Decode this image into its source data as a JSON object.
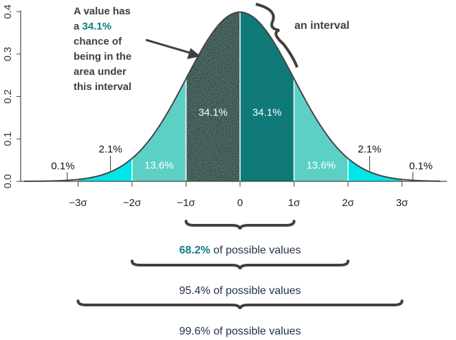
{
  "chart_data": {
    "type": "area",
    "distribution": "standard normal",
    "x_tick_labels": [
      "−3σ",
      "−2σ",
      "−1σ",
      "0",
      "1σ",
      "2σ",
      "3σ"
    ],
    "x_tick_values": [
      -3,
      -2,
      -1,
      0,
      1,
      2,
      3
    ],
    "y_tick_labels": [
      "0.0",
      "0.1",
      "0.2",
      "0.3",
      "0.4"
    ],
    "y_tick_values": [
      0.0,
      0.1,
      0.2,
      0.3,
      0.4
    ],
    "ylim": [
      0,
      0.4
    ],
    "xlim": [
      -4.3,
      4.3
    ],
    "grid": false,
    "regions": [
      {
        "from": -3,
        "to": -2,
        "label": "2.1%",
        "value": 2.1,
        "color": "#00e5ea"
      },
      {
        "from": -2,
        "to": -1,
        "label": "13.6%",
        "value": 13.6,
        "color": "#5dd0c6"
      },
      {
        "from": -1,
        "to": 0,
        "label": "34.1%",
        "value": 34.1,
        "color": "#2e4846",
        "textured": true
      },
      {
        "from": 0,
        "to": 1,
        "label": "34.1%",
        "value": 34.1,
        "color": "#0f7a78"
      },
      {
        "from": 1,
        "to": 2,
        "label": "13.6%",
        "value": 13.6,
        "color": "#5dd0c6"
      },
      {
        "from": 2,
        "to": 3,
        "label": "2.1%",
        "value": 2.1,
        "color": "#00e5ea"
      }
    ],
    "tail_labels": [
      {
        "label": "0.1%",
        "value": 0.1,
        "side": "left"
      },
      {
        "label": "0.1%",
        "value": 0.1,
        "side": "right"
      }
    ],
    "annotation": {
      "line1": "A value has",
      "line2_prefix": "a ",
      "line2_highlight": "34.1%",
      "line3": "chance of",
      "line4": "being in the",
      "line5": "area under",
      "line6": "this interval"
    },
    "interval_label": "an interval",
    "ranges": [
      {
        "highlight": "68.2%",
        "text": " of possible values",
        "from": -1,
        "to": 1
      },
      {
        "text": "95.4% of possible values",
        "from": -2,
        "to": 2
      },
      {
        "text": "99.6% of possible values",
        "from": -3,
        "to": 3
      }
    ]
  },
  "colors": {
    "curve": "#444444",
    "teal_text": "#128080",
    "range_text": "#1f2f4a"
  }
}
